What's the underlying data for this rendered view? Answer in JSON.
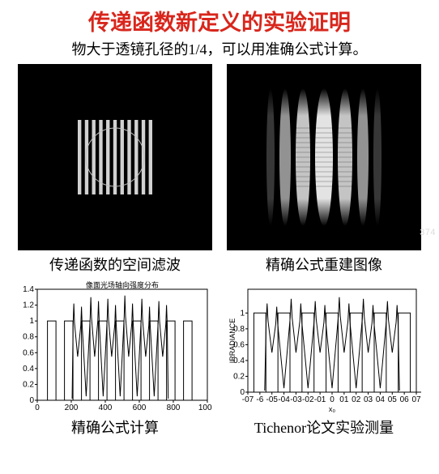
{
  "title": {
    "text": "传递函数新定义的实验证明",
    "color": "#d8261c",
    "fontsize": 27
  },
  "subtitle": {
    "text": "物大于透镜孔径的1/4，可以用准确公式计算。",
    "color": "#000000",
    "fontsize": 18
  },
  "watermark": {
    "text": "374",
    "color": "#dcdcdc"
  },
  "panels": {
    "top_left": {
      "caption": "传递函数的空间滤波",
      "caption_color": "#000000",
      "caption_fontsize": 18,
      "background": "#000000",
      "grating": {
        "type": "infographic",
        "square_size": 92,
        "n_bars": 11,
        "bar_color": "#e8e8e8",
        "bar_alpha": 0.9,
        "circle_radius": 36,
        "circle_stroke": "#bfbfbf",
        "circle_stroke_width": 1
      }
    },
    "top_right": {
      "caption": "精确公式重建图像",
      "caption_color": "#000000",
      "caption_fontsize": 18,
      "background": "#000000",
      "diffraction": {
        "type": "infographic",
        "n_lobes": 7,
        "lobe_colors": [
          "#3a3a3a",
          "#9a9a9a",
          "#cfcfcf",
          "#efefef",
          "#cfcfcf",
          "#9a9a9a",
          "#3a3a3a"
        ],
        "lobe_widths": [
          10,
          14,
          18,
          22,
          18,
          14,
          10
        ],
        "height": 170
      }
    },
    "bottom_left": {
      "caption": "精确公式计算",
      "caption_color": "#000000",
      "caption_fontsize": 18,
      "chart": {
        "type": "line",
        "inner_title": "像面光场轴向强度分布",
        "xlim": [
          0,
          1000
        ],
        "ylim": [
          0,
          1.4
        ],
        "xticks": [
          0,
          200,
          400,
          600,
          800,
          1000
        ],
        "yticks": [
          0,
          0.2,
          0.4,
          0.6,
          0.8,
          1.0,
          1.2,
          1.4
        ],
        "axis_color": "#000000",
        "line_color": "#000000",
        "line_width": 1,
        "square_wave": {
          "period": 100,
          "high": 1.0,
          "low": 0.0,
          "n_periods": 9,
          "start": 60
        },
        "peaks_x": [
          215,
          260,
          315,
          360,
          415,
          460,
          515,
          560,
          615,
          660,
          715,
          760
        ],
        "peaks_y": [
          1.22,
          1.18,
          1.3,
          1.25,
          1.28,
          1.2,
          1.32,
          1.22,
          1.28,
          1.18,
          1.25,
          1.2
        ],
        "valley_between_peaks": 0.55
      }
    },
    "bottom_right": {
      "caption": "Tichenor论文实验测量",
      "caption_color": "#000000",
      "caption_fontsize": 18,
      "chart": {
        "type": "line",
        "y_label": "IRRADIANCE",
        "x_label": "x₀",
        "xlim": [
          -0.7,
          0.7
        ],
        "ylim": [
          0,
          1.3
        ],
        "xticks": [
          -0.7,
          -0.6,
          -0.5,
          -0.4,
          -0.3,
          -0.2,
          -0.1,
          0,
          0.1,
          0.2,
          0.3,
          0.4,
          0.5,
          0.6,
          0.7
        ],
        "xtick_labels": [
          "-07",
          "-6",
          "-05",
          "-04",
          "-03",
          "-02",
          "-01",
          "0",
          "01",
          "02",
          "03",
          "04",
          "05",
          "06",
          "07"
        ],
        "yticks": [
          0,
          0.2,
          0.4,
          0.6,
          0.8,
          1.0
        ],
        "axis_color": "#000000",
        "line_color": "#000000",
        "line_width": 1,
        "square_wave": {
          "period": 0.2,
          "high": 1.0,
          "low": 0.0,
          "n_periods": 7,
          "start": -0.65
        },
        "peaks_x": [
          -0.54,
          -0.46,
          -0.34,
          -0.26,
          -0.14,
          -0.06,
          0.06,
          0.14,
          0.26,
          0.34,
          0.46,
          0.54
        ],
        "peaks_y": [
          1.12,
          1.08,
          1.18,
          1.12,
          1.15,
          1.1,
          1.2,
          1.12,
          1.18,
          1.1,
          1.15,
          1.1
        ],
        "valley_between_peaks": 0.5
      }
    }
  }
}
